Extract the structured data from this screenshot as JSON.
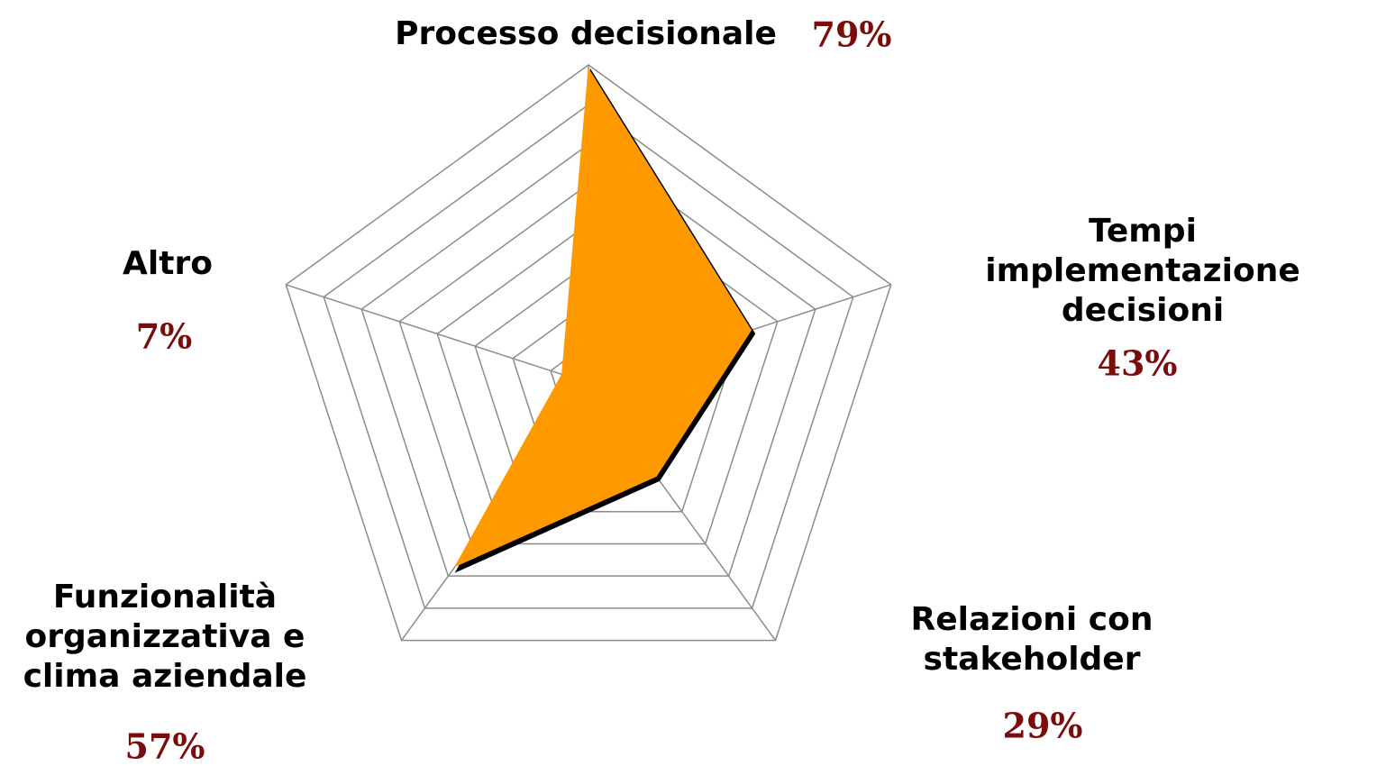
{
  "chart_data": {
    "type": "radar",
    "categories": [
      "Processo decisionale",
      "Tempi implementazione\ndecisioni",
      "Relazioni con\nstakeholder",
      "Funzionalità\norganizzativa e\nclima aziendale",
      "Altro"
    ],
    "values": [
      79,
      43,
      29,
      57,
      7
    ],
    "value_labels": [
      "79%",
      "43%",
      "29%",
      "57%",
      "7%"
    ],
    "color": "#ff9900",
    "rlim": [
      0,
      80
    ],
    "rticks": [
      10,
      20,
      30,
      40,
      50,
      60,
      70,
      80
    ],
    "grid": true
  }
}
